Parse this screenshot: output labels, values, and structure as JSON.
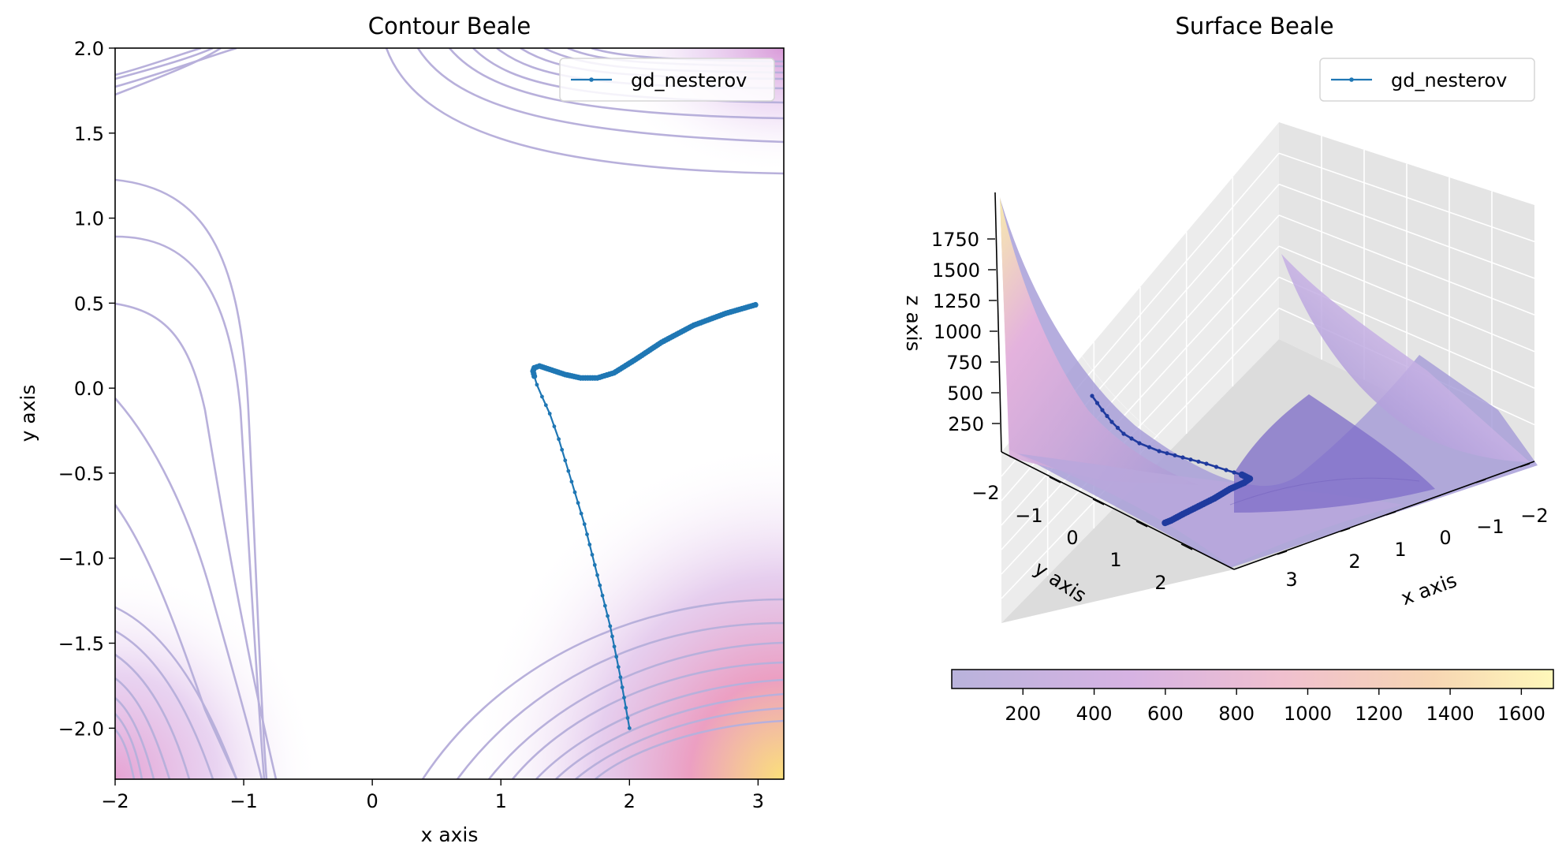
{
  "chart_data": [
    {
      "type": "line",
      "title": "Contour Beale",
      "xlabel": "x axis",
      "ylabel": "y axis",
      "xlim": [
        -2,
        3.2
      ],
      "ylim": [
        -2.3,
        2.0
      ],
      "xticks": [
        -2,
        -1,
        0,
        1,
        2,
        3
      ],
      "yticks": [
        -2.0,
        -1.5,
        -1.0,
        -0.5,
        0.0,
        0.5,
        1.0,
        1.5,
        2.0
      ],
      "grid": true,
      "legend_position": "top-right",
      "contour_color": "#b8b0db",
      "series": [
        {
          "name": "gd_nesterov",
          "color": "#1f77b4",
          "x": [
            2.0,
            1.93,
            1.85,
            1.75,
            1.65,
            1.55,
            1.45,
            1.38,
            1.32,
            1.28,
            1.26,
            1.25,
            1.26,
            1.3,
            1.38,
            1.5,
            1.62,
            1.75,
            1.88,
            2.05,
            2.25,
            2.5,
            2.75,
            2.98
          ],
          "y": [
            -2.0,
            -1.7,
            -1.4,
            -1.1,
            -0.8,
            -0.55,
            -0.3,
            -0.15,
            -0.05,
            0.02,
            0.07,
            0.1,
            0.12,
            0.13,
            0.11,
            0.08,
            0.06,
            0.06,
            0.09,
            0.17,
            0.27,
            0.37,
            0.44,
            0.49
          ]
        }
      ]
    },
    {
      "type": "area",
      "title": "Surface Beale",
      "xlabel": "x axis",
      "ylabel": "y axis",
      "zlabel": "z axis",
      "xticks": [
        "−2",
        "−1",
        "0",
        "1",
        "2",
        "3"
      ],
      "yticks": [
        "−2",
        "−1",
        "0",
        "1",
        "2"
      ],
      "zticks": [
        "250",
        "500",
        "750",
        "1000",
        "1250",
        "1500",
        "1750"
      ],
      "legend_position": "top-right",
      "series": [
        {
          "name": "gd_nesterov",
          "color": "#1f3a9e"
        }
      ],
      "colorbar": {
        "ticks": [
          200,
          400,
          600,
          800,
          1000,
          1200,
          1400,
          1600
        ],
        "range": [
          0,
          1690
        ],
        "colors": [
          "#b9b3dc",
          "#d7b3e3",
          "#f0c0cf",
          "#f7d6b3",
          "#fff8ba"
        ]
      }
    }
  ]
}
